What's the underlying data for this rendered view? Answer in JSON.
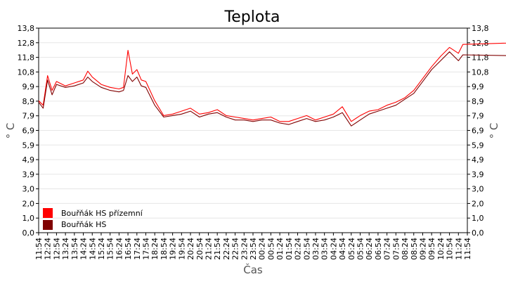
{
  "chart_data": {
    "type": "line",
    "title": "Teplota",
    "xlabel": "Čas",
    "ylabel_left": "° C",
    "ylabel_right": "° C",
    "yticks": [
      "0,0",
      "1,0",
      "2,0",
      "3,0",
      "3,9",
      "4,9",
      "5,9",
      "6,9",
      "7,9",
      "8,9",
      "9,9",
      "10,8",
      "11,8",
      "12,8",
      "13,8"
    ],
    "ylim": [
      0,
      13.8
    ],
    "grid": true,
    "legend_position": "bottom-left",
    "x_time_start": "11:54",
    "x_time_end": "11:54",
    "x_ticks": [
      "11:54",
      "12:24",
      "12:54",
      "13:24",
      "13:54",
      "14:24",
      "14:54",
      "15:24",
      "15:54",
      "16:24",
      "16:54",
      "17:24",
      "17:54",
      "18:24",
      "18:54",
      "19:24",
      "19:54",
      "20:24",
      "20:54",
      "21:24",
      "21:54",
      "22:24",
      "22:54",
      "23:24",
      "23:54",
      "00:24",
      "00:54",
      "01:24",
      "01:54",
      "02:24",
      "02:54",
      "03:24",
      "03:54",
      "04:24",
      "04:54",
      "05:24",
      "05:54",
      "06:24",
      "06:54",
      "07:24",
      "07:54",
      "08:24",
      "08:54",
      "09:24",
      "09:54",
      "10:24",
      "10:54",
      "11:24",
      "11:54"
    ],
    "series": [
      {
        "name": "Bouřňák HS přízemní",
        "color": "#ff0000",
        "points": [
          [
            "11:54",
            8.9
          ],
          [
            "12:09",
            8.6
          ],
          [
            "12:24",
            10.6
          ],
          [
            "12:39",
            9.6
          ],
          [
            "12:54",
            10.2
          ],
          [
            "13:24",
            9.9
          ],
          [
            "13:54",
            10.1
          ],
          [
            "14:24",
            10.3
          ],
          [
            "14:39",
            10.9
          ],
          [
            "14:54",
            10.5
          ],
          [
            "15:24",
            10.0
          ],
          [
            "15:54",
            9.8
          ],
          [
            "16:24",
            9.7
          ],
          [
            "16:39",
            9.8
          ],
          [
            "16:54",
            12.3
          ],
          [
            "17:09",
            10.7
          ],
          [
            "17:24",
            11.0
          ],
          [
            "17:39",
            10.3
          ],
          [
            "17:54",
            10.2
          ],
          [
            "18:24",
            8.9
          ],
          [
            "18:54",
            7.9
          ],
          [
            "19:24",
            8.0
          ],
          [
            "19:54",
            8.2
          ],
          [
            "20:24",
            8.4
          ],
          [
            "20:54",
            8.0
          ],
          [
            "21:24",
            8.1
          ],
          [
            "21:54",
            8.3
          ],
          [
            "22:24",
            7.9
          ],
          [
            "22:54",
            7.8
          ],
          [
            "23:24",
            7.7
          ],
          [
            "23:54",
            7.6
          ],
          [
            "00:24",
            7.7
          ],
          [
            "00:54",
            7.8
          ],
          [
            "01:24",
            7.5
          ],
          [
            "01:54",
            7.5
          ],
          [
            "02:24",
            7.7
          ],
          [
            "02:54",
            7.9
          ],
          [
            "03:24",
            7.6
          ],
          [
            "03:54",
            7.8
          ],
          [
            "04:24",
            8.0
          ],
          [
            "04:54",
            8.5
          ],
          [
            "05:24",
            7.5
          ],
          [
            "05:54",
            7.9
          ],
          [
            "06:24",
            8.2
          ],
          [
            "06:54",
            8.3
          ],
          [
            "07:24",
            8.6
          ],
          [
            "07:54",
            8.8
          ],
          [
            "08:24",
            9.1
          ],
          [
            "08:54",
            9.6
          ],
          [
            "09:24",
            10.4
          ],
          [
            "09:54",
            11.2
          ],
          [
            "10:24",
            11.9
          ],
          [
            "10:54",
            12.5
          ],
          [
            "11:24",
            12.1
          ],
          [
            "11:39",
            12.7
          ],
          [
            "11:54",
            13.6
          ]
        ]
      },
      {
        "name": "Bouřňák HS",
        "color": "#800000",
        "points": [
          [
            "11:54",
            8.8
          ],
          [
            "12:09",
            8.4
          ],
          [
            "12:24",
            10.3
          ],
          [
            "12:39",
            9.3
          ],
          [
            "12:54",
            10.0
          ],
          [
            "13:24",
            9.8
          ],
          [
            "13:54",
            9.9
          ],
          [
            "14:24",
            10.1
          ],
          [
            "14:39",
            10.5
          ],
          [
            "14:54",
            10.2
          ],
          [
            "15:24",
            9.8
          ],
          [
            "15:54",
            9.6
          ],
          [
            "16:24",
            9.5
          ],
          [
            "16:39",
            9.6
          ],
          [
            "16:54",
            10.6
          ],
          [
            "17:09",
            10.2
          ],
          [
            "17:24",
            10.5
          ],
          [
            "17:39",
            9.9
          ],
          [
            "17:54",
            9.8
          ],
          [
            "18:24",
            8.6
          ],
          [
            "18:54",
            7.8
          ],
          [
            "19:24",
            7.9
          ],
          [
            "19:54",
            8.0
          ],
          [
            "20:24",
            8.2
          ],
          [
            "20:54",
            7.8
          ],
          [
            "21:24",
            8.0
          ],
          [
            "21:54",
            8.1
          ],
          [
            "22:24",
            7.8
          ],
          [
            "22:54",
            7.6
          ],
          [
            "23:24",
            7.6
          ],
          [
            "23:54",
            7.5
          ],
          [
            "00:24",
            7.6
          ],
          [
            "00:54",
            7.6
          ],
          [
            "01:24",
            7.4
          ],
          [
            "01:54",
            7.3
          ],
          [
            "02:24",
            7.5
          ],
          [
            "02:54",
            7.7
          ],
          [
            "03:24",
            7.5
          ],
          [
            "03:54",
            7.6
          ],
          [
            "04:24",
            7.8
          ],
          [
            "04:54",
            8.1
          ],
          [
            "05:24",
            7.2
          ],
          [
            "05:54",
            7.6
          ],
          [
            "06:24",
            8.0
          ],
          [
            "06:54",
            8.2
          ],
          [
            "07:24",
            8.4
          ],
          [
            "07:54",
            8.6
          ],
          [
            "08:24",
            9.0
          ],
          [
            "08:54",
            9.4
          ],
          [
            "09:24",
            10.2
          ],
          [
            "09:54",
            11.0
          ],
          [
            "10:24",
            11.6
          ],
          [
            "10:54",
            12.2
          ],
          [
            "11:24",
            11.6
          ],
          [
            "11:39",
            12.0
          ],
          [
            "11:54",
            11.5
          ]
        ]
      }
    ]
  }
}
